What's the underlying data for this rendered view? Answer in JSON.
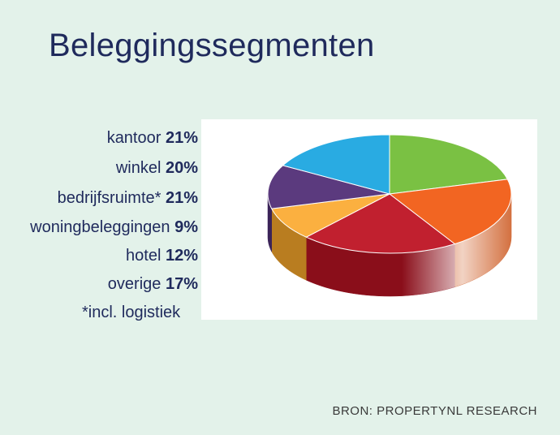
{
  "title": "Beleggingssegmenten",
  "footnote": "*incl. logistiek",
  "source": "BRON: PROPERTYNL RESEARCH",
  "chart_data": {
    "type": "pie",
    "title": "Beleggingssegmenten",
    "legend_position": "left",
    "slices": [
      {
        "label": "kantoor",
        "value_label": "21%",
        "value": 21,
        "color": "#7ac143",
        "side_color": "#5a9a2a"
      },
      {
        "label": "winkel",
        "value_label": "20%",
        "value": 20,
        "color": "#f26522",
        "side_color": "#c94d10"
      },
      {
        "label": "bedrijfsruimte*",
        "value_label": "21%",
        "value": 21,
        "color": "#c1202f",
        "side_color": "#8a0e1a"
      },
      {
        "label": "woningbeleggingen",
        "value_label": "9%",
        "value": 9,
        "color": "#fbb040",
        "side_color": "#b97d20"
      },
      {
        "label": "hotel",
        "value_label": "12%",
        "value": 12,
        "color": "#5b3a7e",
        "side_color": "#3b2358"
      },
      {
        "label": "overige",
        "value_label": "17%",
        "value": 17,
        "color": "#29abe2",
        "side_color": "#1a7fab"
      }
    ]
  }
}
